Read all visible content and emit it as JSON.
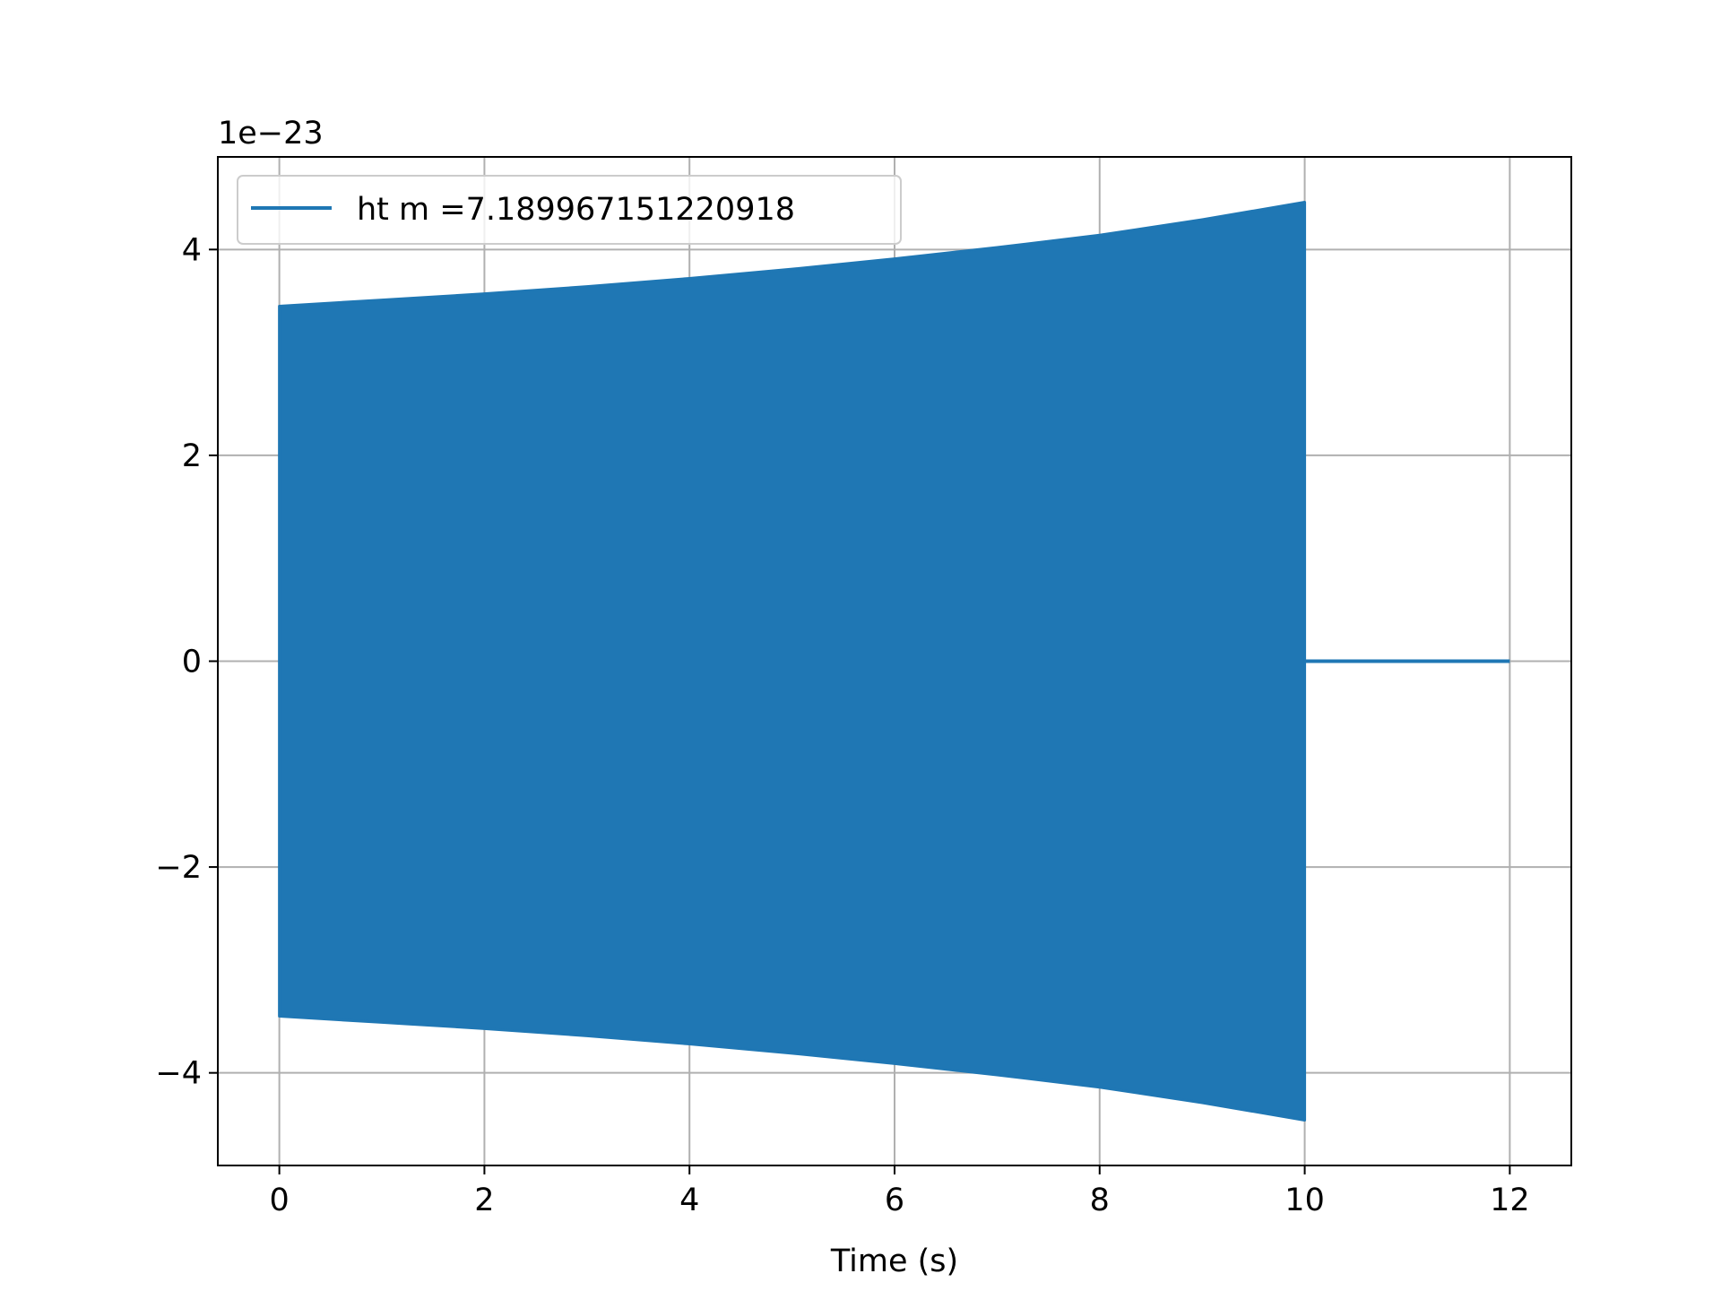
{
  "chart_data": {
    "type": "line",
    "xlabel": "Time (s)",
    "ylabel": "",
    "offset_label": "1e−23",
    "xlim": [
      -0.6,
      12.6
    ],
    "ylim": [
      -4.9,
      4.9
    ],
    "x_ticks": [
      0,
      2,
      4,
      6,
      8,
      10,
      12
    ],
    "x_tick_labels": [
      "0",
      "2",
      "4",
      "6",
      "8",
      "10",
      "12"
    ],
    "y_ticks": [
      -4,
      -2,
      0,
      2,
      4
    ],
    "y_tick_labels": [
      "−4",
      "−2",
      "0",
      "2",
      "4"
    ],
    "grid": true,
    "legend_position": "upper-left",
    "series": [
      {
        "name": "ht m =7.189967151220918",
        "color": "#1f77b4",
        "envelope": {
          "x": [
            0,
            1,
            2,
            3,
            4,
            5,
            6,
            7,
            8,
            9,
            10
          ],
          "upper": [
            3.45,
            3.51,
            3.57,
            3.64,
            3.72,
            3.81,
            3.91,
            4.02,
            4.14,
            4.29,
            4.46
          ],
          "lower": [
            -3.45,
            -3.51,
            -3.57,
            -3.64,
            -3.72,
            -3.81,
            -3.91,
            -4.02,
            -4.14,
            -4.29,
            -4.46
          ]
        },
        "start_value": 0.15,
        "signal_end": 10,
        "tail": {
          "x": [
            10,
            12
          ],
          "y": [
            0,
            0
          ]
        }
      }
    ]
  }
}
